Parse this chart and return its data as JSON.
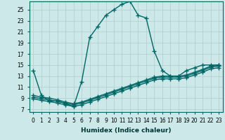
{
  "xlabel": "Humidex (Indice chaleur)",
  "bg_color": "#cce8e8",
  "line_color": "#006666",
  "grid_color": "#b0cccc",
  "xlim": [
    -0.5,
    23.5
  ],
  "ylim": [
    6.5,
    26.5
  ],
  "xticks": [
    0,
    1,
    2,
    3,
    4,
    5,
    6,
    7,
    8,
    9,
    10,
    11,
    12,
    13,
    14,
    15,
    16,
    17,
    18,
    19,
    20,
    21,
    22,
    23
  ],
  "yticks": [
    7,
    9,
    11,
    13,
    15,
    17,
    19,
    21,
    23,
    25
  ],
  "main_line": {
    "x": [
      0,
      1,
      2,
      3,
      4,
      5,
      6,
      7,
      8,
      9,
      10,
      11,
      12,
      13,
      14,
      15,
      16,
      17,
      18,
      19,
      20,
      21,
      22,
      23
    ],
    "y": [
      14,
      9.5,
      8.5,
      8.5,
      8,
      7.5,
      12,
      20,
      22,
      24,
      25,
      26,
      26.5,
      24,
      23.5,
      17.5,
      14,
      13,
      13,
      14,
      14.5,
      15,
      15,
      15
    ]
  },
  "sub_lines": [
    {
      "x": [
        0,
        1,
        2,
        3,
        4,
        5,
        6,
        7,
        8,
        9,
        10,
        11,
        12,
        13,
        14,
        15,
        16,
        17,
        18,
        19,
        20,
        21,
        22,
        23
      ],
      "y": [
        9.5,
        9.2,
        9.0,
        8.7,
        8.3,
        8.0,
        8.3,
        8.8,
        9.3,
        9.8,
        10.3,
        10.8,
        11.3,
        11.8,
        12.3,
        12.8,
        13.0,
        13.0,
        13.0,
        13.2,
        13.7,
        14.2,
        14.8,
        15.0
      ]
    },
    {
      "x": [
        0,
        1,
        2,
        3,
        4,
        5,
        6,
        7,
        8,
        9,
        10,
        11,
        12,
        13,
        14,
        15,
        16,
        17,
        18,
        19,
        20,
        21,
        22,
        23
      ],
      "y": [
        9.2,
        8.9,
        8.7,
        8.4,
        8.1,
        7.8,
        8.1,
        8.6,
        9.1,
        9.6,
        10.1,
        10.6,
        11.1,
        11.6,
        12.1,
        12.6,
        12.8,
        12.8,
        12.8,
        13.0,
        13.5,
        14.0,
        14.6,
        14.8
      ]
    },
    {
      "x": [
        0,
        1,
        2,
        3,
        4,
        5,
        6,
        7,
        8,
        9,
        10,
        11,
        12,
        13,
        14,
        15,
        16,
        17,
        18,
        19,
        20,
        21,
        22,
        23
      ],
      "y": [
        8.9,
        8.6,
        8.4,
        8.1,
        7.8,
        7.5,
        7.8,
        8.3,
        8.8,
        9.3,
        9.8,
        10.3,
        10.8,
        11.3,
        11.8,
        12.3,
        12.5,
        12.5,
        12.5,
        12.7,
        13.2,
        13.7,
        14.3,
        14.5
      ]
    }
  ],
  "marker": "+",
  "markersize": 4,
  "linewidth": 1.0,
  "label_fontsize": 6.5,
  "tick_fontsize": 5.5
}
